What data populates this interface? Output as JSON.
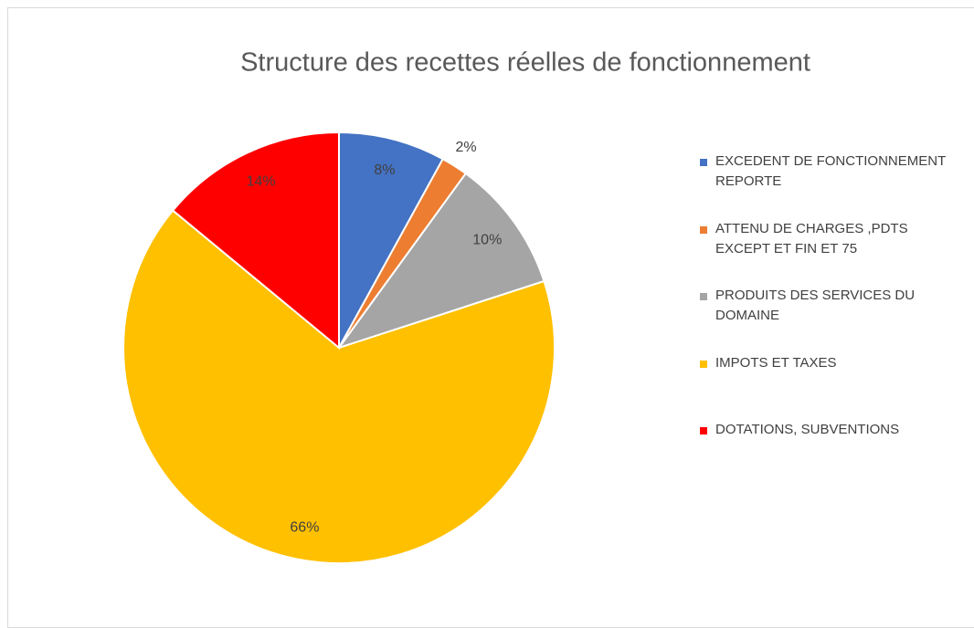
{
  "chart_data": {
    "type": "pie",
    "title": "Structure des recettes réelles de fonctionnement",
    "categories": [
      "EXCEDENT DE FONCTIONNEMENT REPORTE",
      "ATTENU DE CHARGES ,PDTS EXCEPT ET FIN ET 75",
      "PRODUITS DES SERVICES DU DOMAINE",
      "IMPOTS ET TAXES",
      "DOTATIONS, SUBVENTIONS"
    ],
    "values": [
      8,
      2,
      10,
      66,
      14
    ],
    "value_labels": [
      "8%",
      "2%",
      "10%",
      "66%",
      "14%"
    ],
    "colors": [
      "#4472c4",
      "#ed7d31",
      "#a5a5a5",
      "#ffc000",
      "#ff0000"
    ],
    "legend": "right"
  }
}
